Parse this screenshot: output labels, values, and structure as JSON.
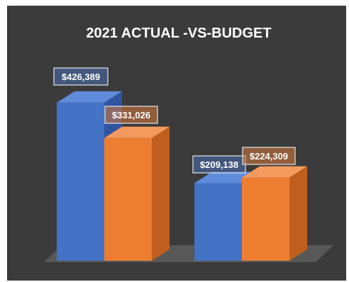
{
  "chart_data": {
    "type": "bar",
    "title": "2021 ACTUAL -VS-BUDGET",
    "categories": [
      "",
      ""
    ],
    "series": [
      {
        "values": [
          426389,
          209138
        ],
        "labels": [
          "$426,389",
          "$209,138"
        ]
      },
      {
        "values": [
          331026,
          224309
        ],
        "labels": [
          "$331,026",
          "$224,309"
        ]
      }
    ],
    "ylim": [
      0,
      470000
    ],
    "grid": false,
    "style": "3d-column",
    "colors": {
      "background": "#3b3b3b",
      "floor": "#585858",
      "series_0_front": "#4472c4",
      "series_0_side": "#2f55a0",
      "series_0_top": "#5f8bdb",
      "series_1_front": "#ed7d31",
      "series_1_side": "#c05f1d",
      "series_1_top": "#f49a5e",
      "label_border": "#e6e6e6",
      "label_fill_0": "#4a6fb5",
      "label_fill_1": "#d97a3a",
      "title": "#ffffff"
    }
  }
}
